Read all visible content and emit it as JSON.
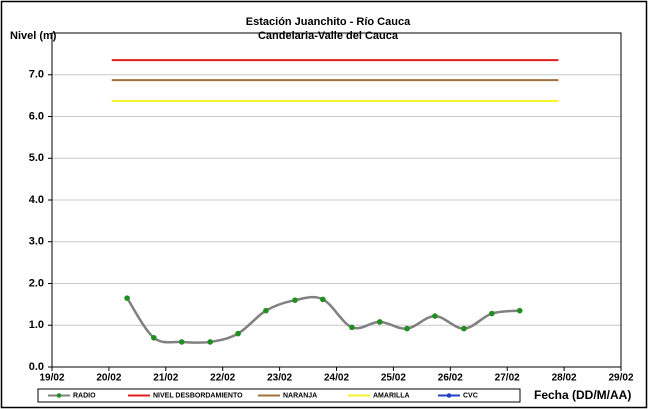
{
  "chart_data": {
    "type": "line",
    "title": "Estación Juanchito - Río Cauca",
    "subtitle": "Candelaria-Valle del Cauca",
    "y_label": "Nivel (m)",
    "x_label": "Fecha (DD/M/AA)",
    "xlim": [
      19,
      29
    ],
    "xticks": [
      {
        "value": 19,
        "label": "19/02"
      },
      {
        "value": 20,
        "label": "20/02"
      },
      {
        "value": 21,
        "label": "21/02"
      },
      {
        "value": 22,
        "label": "22/02"
      },
      {
        "value": 23,
        "label": "23/02"
      },
      {
        "value": 24,
        "label": "24/02"
      },
      {
        "value": 25,
        "label": "25/02"
      },
      {
        "value": 26,
        "label": "26/02"
      },
      {
        "value": 27,
        "label": "27/02"
      },
      {
        "value": 28,
        "label": "28/02"
      },
      {
        "value": 29,
        "label": "29/02"
      }
    ],
    "ylim": [
      0,
      8
    ],
    "yticks": [
      {
        "value": 0,
        "label": "0.0"
      },
      {
        "value": 1,
        "label": "1.0"
      },
      {
        "value": 2,
        "label": "2.0"
      },
      {
        "value": 3,
        "label": "3.0"
      },
      {
        "value": 4,
        "label": "4.0"
      },
      {
        "value": 5,
        "label": "5.0"
      },
      {
        "value": 6,
        "label": "6.0"
      },
      {
        "value": 7,
        "label": "7.0"
      }
    ],
    "grid": true,
    "legend": "bottom",
    "series": [
      {
        "name": "RADIO",
        "color": "#808080",
        "marker_color": "#1f8f1f",
        "smooth": true,
        "x": [
          20.32,
          20.79,
          21.28,
          21.78,
          22.27,
          22.76,
          23.27,
          23.76,
          24.27,
          24.76,
          25.24,
          25.73,
          26.24,
          26.73,
          27.22
        ],
        "values": [
          1.65,
          0.7,
          0.6,
          0.6,
          0.8,
          1.35,
          1.6,
          1.62,
          0.95,
          1.08,
          0.92,
          1.22,
          0.92,
          1.28,
          1.35
        ]
      },
      {
        "name": "NIVEL DESBORDAMIENTO",
        "color": "#e02020",
        "x": [
          20.05,
          27.9
        ],
        "values": [
          7.35,
          7.35
        ]
      },
      {
        "name": "NARANJA",
        "color": "#a0703a",
        "x": [
          20.05,
          27.9
        ],
        "values": [
          6.87,
          6.87
        ]
      },
      {
        "name": "AMARILLA",
        "color": "#f5f528",
        "x": [
          20.05,
          27.9
        ],
        "values": [
          6.37,
          6.37
        ]
      },
      {
        "name": "CVC",
        "color": "#2040c0",
        "marker_color": "#2040c0",
        "x": [],
        "values": []
      }
    ]
  }
}
